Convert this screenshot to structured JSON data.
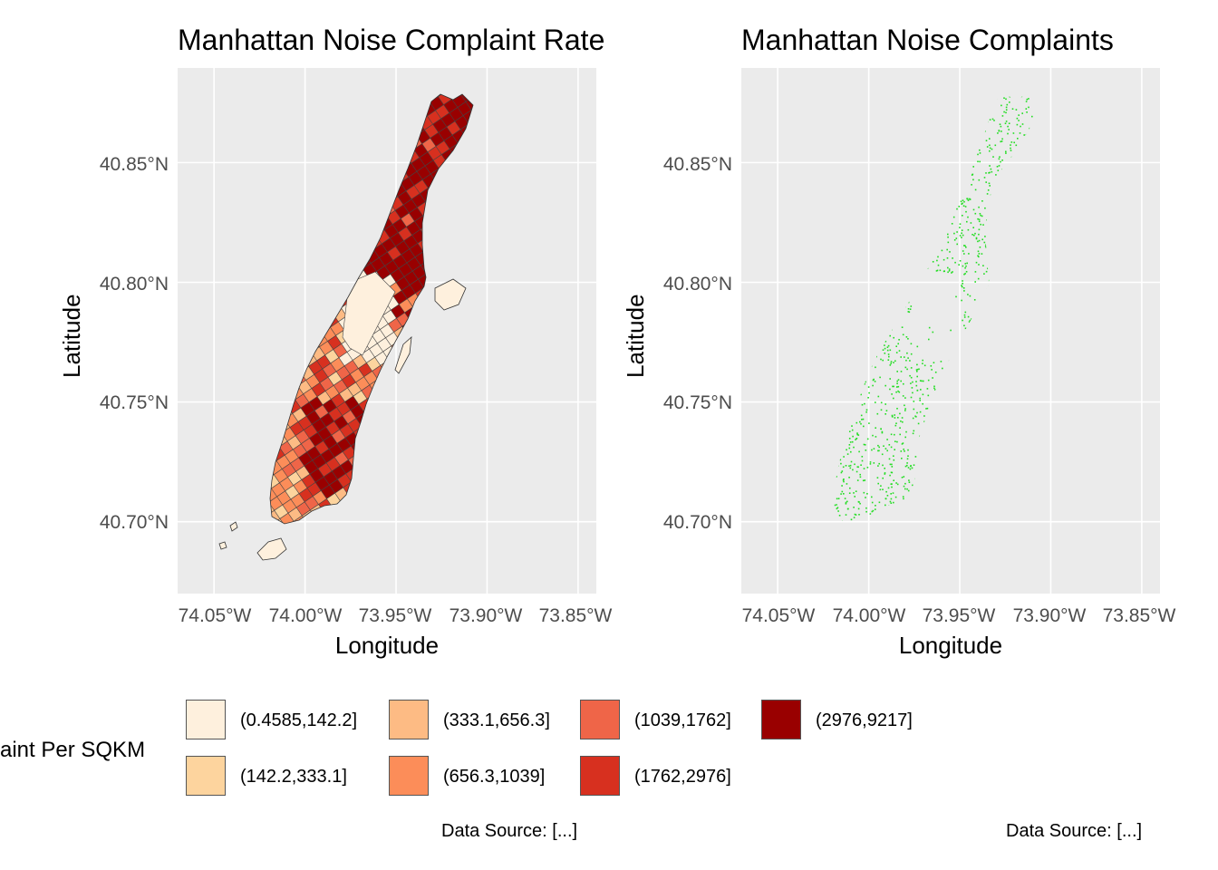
{
  "panels": [
    {
      "id": "left",
      "title": "Manhattan Noise Complaint Rate",
      "xlabel": "Longitude",
      "ylabel": "Latitude",
      "caption": "Data Source: [...]",
      "type": "choropleth"
    },
    {
      "id": "right",
      "title": "Manhattan Noise Complaints",
      "xlabel": "Longitude",
      "ylabel": "Latitude",
      "caption": "Data Source: [...]",
      "type": "points",
      "point_color": "#22dd22"
    }
  ],
  "axes": {
    "x_ticks": [
      {
        "value": -74.05,
        "label": "74.05°W"
      },
      {
        "value": -74.0,
        "label": "74.00°W"
      },
      {
        "value": -73.95,
        "label": "73.95°W"
      },
      {
        "value": -73.9,
        "label": "73.90°W"
      },
      {
        "value": -73.85,
        "label": "73.85°W"
      }
    ],
    "y_ticks": [
      {
        "value": 40.85,
        "label": "40.85°N"
      },
      {
        "value": 40.8,
        "label": "40.80°N"
      },
      {
        "value": 40.75,
        "label": "40.75°N"
      },
      {
        "value": 40.7,
        "label": "40.70°N"
      }
    ],
    "x_range": [
      -74.07,
      -73.84
    ],
    "y_range": [
      40.67,
      40.8895
    ]
  },
  "legend": {
    "title": "Complaint Per SQKM",
    "visible_title": "aint Per SQKM",
    "classes": [
      {
        "label": "(0.4585,142.2]",
        "color": "#fef0dd"
      },
      {
        "label": "(142.2,333.1]",
        "color": "#fdd49e"
      },
      {
        "label": "(333.1,656.3]",
        "color": "#fdbb84"
      },
      {
        "label": "(656.3,1039]",
        "color": "#fc8d59"
      },
      {
        "label": "(1039,1762]",
        "color": "#ef6548"
      },
      {
        "label": "(1762,2976]",
        "color": "#d7301f"
      },
      {
        "label": "(2976,9217]",
        "color": "#990000"
      }
    ]
  },
  "colors": {
    "panel_bg": "#ebebeb",
    "grid": "#ffffff",
    "tract_border": "#444444",
    "land": "#fef0dd"
  }
}
